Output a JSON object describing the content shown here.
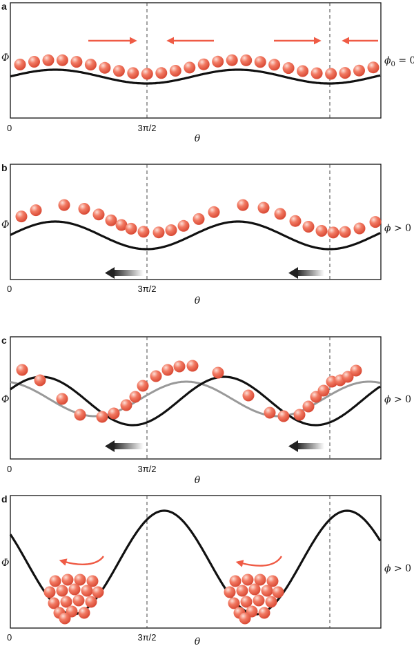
{
  "colors": {
    "ball": "#f0705a",
    "ball_light": "#fde0d8",
    "ball_dark": "#d94a35",
    "arrow": "#ef5b45",
    "curve": "#111111",
    "curve_alt": "#999999",
    "dashed": "#444444"
  },
  "panels": [
    {
      "label": "a",
      "y_label": "Φ",
      "x_ticks": [
        "0",
        "3π/2"
      ],
      "x_label": "θ",
      "side_symbol": "ϕ",
      "side_subscript": "0",
      "side_relation": " = 0",
      "potential_curves": [
        {
          "kind": "black",
          "amplitude": 0.12
        }
      ],
      "particle_count": 26,
      "arrows": "opposing-red",
      "gradient_arrow_icons": []
    },
    {
      "label": "b",
      "y_label": "Φ",
      "x_ticks": [
        "0",
        "3π/2"
      ],
      "x_label": "θ",
      "side_symbol": "ϕ",
      "side_subscript": "",
      "side_relation": " > 0",
      "potential_curves": [
        {
          "kind": "black",
          "amplitude": 0.3
        }
      ],
      "particle_count": 26,
      "arrows": "gray-left",
      "gradient_arrow_icons": [
        "left",
        "left"
      ]
    },
    {
      "label": "c",
      "y_label": "Φ",
      "x_ticks": [
        "0",
        "3π/2"
      ],
      "x_label": "θ",
      "side_symbol": "ϕ",
      "side_subscript": "",
      "side_relation": " > 0",
      "potential_curves": [
        {
          "kind": "black",
          "amplitude": 0.6
        },
        {
          "kind": "gray",
          "amplitude": 0.4
        }
      ],
      "particle_count": 27,
      "arrows": "gray-left",
      "gradient_arrow_icons": [
        "left",
        "left"
      ]
    },
    {
      "label": "d",
      "y_label": "Φ",
      "x_ticks": [
        "0",
        "3π/2"
      ],
      "x_label": "θ",
      "side_symbol": "ϕ",
      "side_subscript": "",
      "side_relation": " > 0",
      "potential_curves": [
        {
          "kind": "black",
          "amplitude": 1.0
        }
      ],
      "particle_count": 34,
      "arrows": "curved-red",
      "gradient_arrow_icons": []
    }
  ]
}
